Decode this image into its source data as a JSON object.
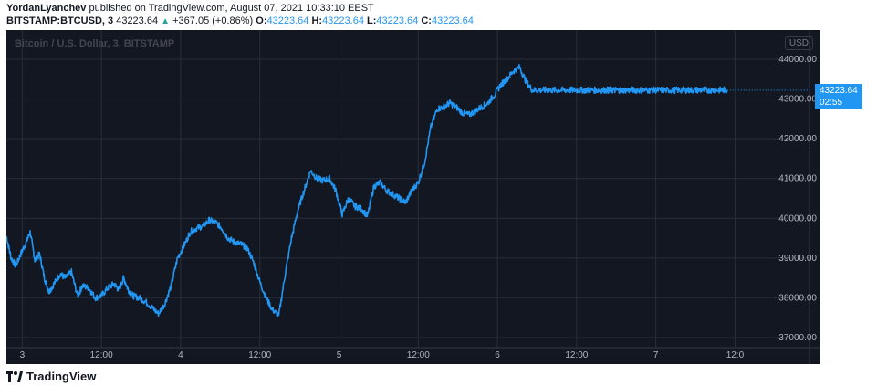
{
  "header": {
    "author": "YordanLyanchev",
    "published": "published on TradingView.com, August 07, 2021 10:33:10 EEST",
    "symbol": "BITSTAMP:BTCUSD, 3",
    "last": "43223.64",
    "change": "+367.05 (+0.86%)",
    "o_label": "O:",
    "o_val": "43223.64",
    "h_label": "H:",
    "h_val": "43223.64",
    "l_label": "L:",
    "l_val": "43223.64",
    "c_label": "C:",
    "c_val": "43223.64"
  },
  "currency": "USD",
  "price_tag": {
    "price": "43223.64",
    "countdown": "02:55"
  },
  "logo": "TradingView",
  "colors": {
    "background": "#131722",
    "line": "#2196f3",
    "grid": "#2a2e39"
  },
  "chart_data": {
    "type": "line",
    "title": "Bitcoin / U.S. Dollar, 3, BITSTAMP",
    "ylim": [
      37000,
      44000
    ],
    "yticks": [
      {
        "value": 37000,
        "label": "37000.00"
      },
      {
        "value": 38000,
        "label": "38000.00"
      },
      {
        "value": 39000,
        "label": "39000.00"
      },
      {
        "value": 40000,
        "label": "40000.00"
      },
      {
        "value": 41000,
        "label": "41000.00"
      },
      {
        "value": 42000,
        "label": "42000.00"
      },
      {
        "value": 43000,
        "label": "43000.00"
      },
      {
        "value": 44000,
        "label": "44000.00"
      }
    ],
    "xlim": [
      2.9,
      7.97
    ],
    "xticks": [
      {
        "value": 3.0,
        "label": "3"
      },
      {
        "value": 3.5,
        "label": "12:00"
      },
      {
        "value": 4.0,
        "label": "4"
      },
      {
        "value": 4.5,
        "label": "12:00"
      },
      {
        "value": 5.0,
        "label": "5"
      },
      {
        "value": 5.5,
        "label": "12:00"
      },
      {
        "value": 6.0,
        "label": "6"
      },
      {
        "value": 6.5,
        "label": "12:00"
      },
      {
        "value": 7.0,
        "label": "7"
      },
      {
        "value": 7.5,
        "label": "12:0"
      }
    ],
    "series": [
      {
        "x": [
          2.9,
          2.93,
          2.96,
          2.99,
          3.02,
          3.05,
          3.08,
          3.11,
          3.14,
          3.17,
          3.2,
          3.24,
          3.27,
          3.31,
          3.35,
          3.38,
          3.42,
          3.46,
          3.5,
          3.54,
          3.58,
          3.61,
          3.64,
          3.67,
          3.7,
          3.74,
          3.78,
          3.82,
          3.86,
          3.9,
          3.94,
          3.98,
          4.02,
          4.06,
          4.1,
          4.14,
          4.18,
          4.22,
          4.26,
          4.3,
          4.34,
          4.38,
          4.42,
          4.46,
          4.5,
          4.54,
          4.58,
          4.62,
          4.66,
          4.7,
          4.74,
          4.78,
          4.82,
          4.86,
          4.9,
          4.94,
          4.98,
          5.02,
          5.06,
          5.1,
          5.14,
          5.18,
          5.22,
          5.26,
          5.3,
          5.34,
          5.38,
          5.42,
          5.46,
          5.5,
          5.54,
          5.58,
          5.62,
          5.66,
          5.7,
          5.74,
          5.78,
          5.82,
          5.86,
          5.9,
          5.94,
          5.98,
          6.02,
          6.06,
          6.1,
          6.14,
          6.18,
          6.22,
          6.26,
          6.3,
          6.34,
          6.38,
          6.42,
          6.46,
          6.5,
          6.54,
          6.58,
          6.62,
          6.66,
          6.7,
          6.72,
          6.75,
          6.78,
          6.82,
          6.86,
          6.9,
          6.94,
          6.98,
          7.02,
          7.06,
          7.1,
          7.14,
          7.18,
          7.22,
          7.26,
          7.3,
          7.34,
          7.38,
          7.42,
          7.45
        ],
        "y": [
          39550,
          39000,
          38800,
          39100,
          39350,
          39650,
          38950,
          39100,
          38500,
          38150,
          38350,
          38600,
          38500,
          38650,
          38050,
          38300,
          38250,
          38000,
          38050,
          38250,
          38350,
          38200,
          38500,
          38200,
          38050,
          38000,
          37900,
          37750,
          37600,
          37850,
          38300,
          39000,
          39300,
          39650,
          39750,
          39800,
          39950,
          39900,
          39750,
          39500,
          39400,
          39350,
          39250,
          38900,
          38400,
          38000,
          37700,
          37550,
          38600,
          39500,
          40200,
          40700,
          41200,
          41000,
          40950,
          41000,
          40700,
          40100,
          40500,
          40300,
          40250,
          40050,
          40800,
          40900,
          40700,
          40600,
          40500,
          40400,
          40700,
          40900,
          41400,
          42300,
          42750,
          42800,
          42900,
          42800,
          42650,
          42600,
          42700,
          42800,
          42900,
          43100,
          43350,
          43500,
          43700,
          43800,
          43450,
          43223.64,
          43223.64,
          43223.64,
          43223.64,
          43223.64,
          43223.64,
          43223.64,
          43223.64,
          43223.64,
          43223.64,
          43223.64,
          43223.64,
          43223.64,
          43223.64,
          43223.64,
          43223.64,
          43223.64,
          43223.64,
          43223.64,
          43223.64,
          43223.64,
          43223.64,
          43223.64,
          43223.64,
          43223.64,
          43223.64,
          43223.64,
          43223.64,
          43223.64,
          43223.64,
          43223.64,
          43223.64,
          43223.64
        ]
      }
    ]
  }
}
